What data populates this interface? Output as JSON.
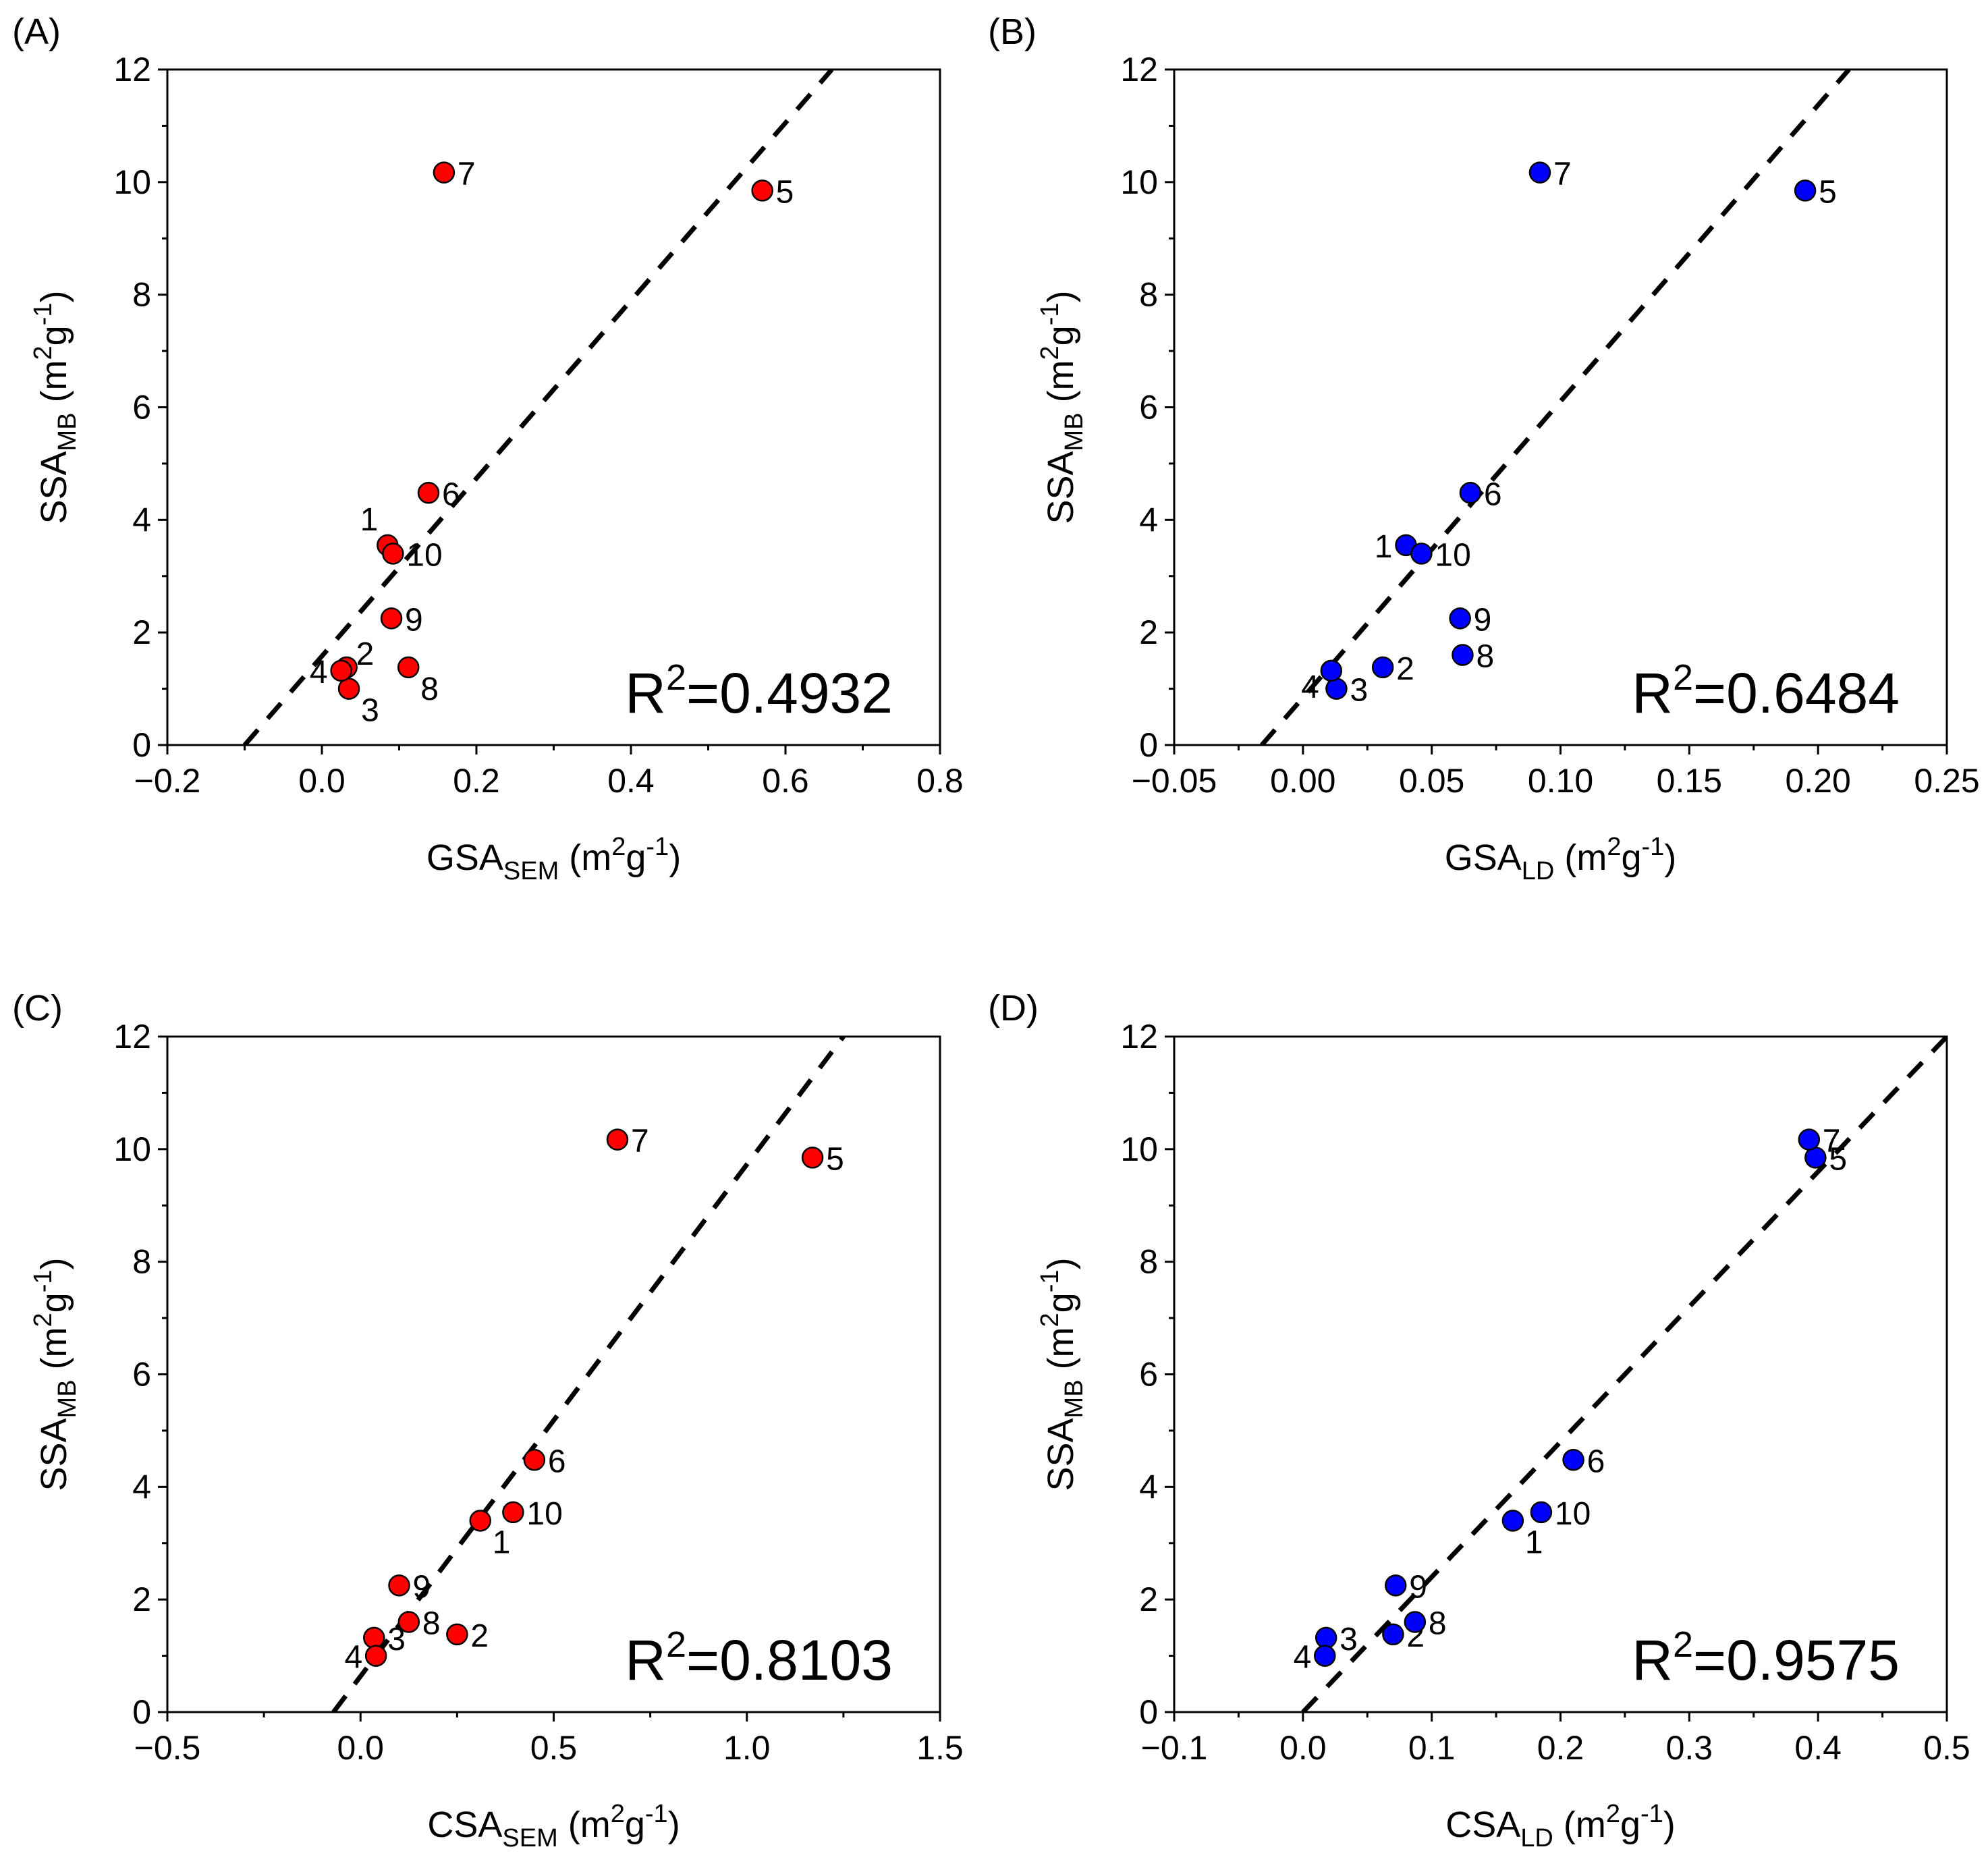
{
  "chart_data": [
    {
      "type": "scatter",
      "panel_label": "(A)",
      "xlabel": {
        "main": "GSA",
        "sub": "SEM",
        "units": " (m",
        "sup1": "2",
        "g": "g",
        "sup2": "-1",
        "close": ")"
      },
      "ylabel": {
        "main": "SSA",
        "sub": "MB",
        "units": " (m",
        "sup1": "2",
        "g": "g",
        "sup2": "-1",
        "close": ")"
      },
      "xlim": [
        -0.2,
        0.8
      ],
      "ylim": [
        0,
        12
      ],
      "xticks": [
        -0.2,
        0.0,
        0.2,
        0.4,
        0.6,
        0.8
      ],
      "xtick_labels": [
        "−0.2",
        "0.0",
        "0.2",
        "0.4",
        "0.6",
        "0.8"
      ],
      "yticks": [
        0,
        2,
        4,
        6,
        8,
        10,
        12
      ],
      "ytick_labels": [
        "0",
        "2",
        "4",
        "6",
        "8",
        "10",
        "12"
      ],
      "marker_color": "#ff0000",
      "points": [
        {
          "label": "1",
          "x": 0.085,
          "y": 3.55,
          "lpos": "nw"
        },
        {
          "label": "2",
          "x": 0.032,
          "y": 1.38,
          "lpos": "ne"
        },
        {
          "label": "3",
          "x": 0.035,
          "y": 1.0,
          "lpos": "se"
        },
        {
          "label": "4",
          "x": 0.025,
          "y": 1.32,
          "lpos": "w"
        },
        {
          "label": "5",
          "x": 0.57,
          "y": 9.85,
          "lpos": "e"
        },
        {
          "label": "6",
          "x": 0.138,
          "y": 4.48,
          "lpos": "e"
        },
        {
          "label": "7",
          "x": 0.158,
          "y": 10.17,
          "lpos": "e"
        },
        {
          "label": "8",
          "x": 0.112,
          "y": 1.38,
          "lpos": "se"
        },
        {
          "label": "9",
          "x": 0.09,
          "y": 2.25,
          "lpos": "e"
        },
        {
          "label": "10",
          "x": 0.092,
          "y": 3.4,
          "lpos": "e"
        }
      ],
      "fit_line": {
        "x": [
          -0.1,
          0.66
        ],
        "y": [
          0,
          12
        ]
      },
      "annotation": {
        "text": "R",
        "sup": "2",
        "rest": "=0.4932"
      }
    },
    {
      "type": "scatter",
      "panel_label": "(B)",
      "xlabel": {
        "main": "GSA",
        "sub": "LD",
        "units": " (m",
        "sup1": "2",
        "g": "g",
        "sup2": "-1",
        "close": ")"
      },
      "ylabel": {
        "main": "SSA",
        "sub": "MB",
        "units": " (m",
        "sup1": "2",
        "g": "g",
        "sup2": "-1",
        "close": ")"
      },
      "xlim": [
        -0.05,
        0.25
      ],
      "ylim": [
        0,
        12
      ],
      "xticks": [
        -0.05,
        0.0,
        0.05,
        0.1,
        0.15,
        0.2,
        0.25
      ],
      "xtick_labels": [
        "−0.05",
        "0.00",
        "0.05",
        "0.10",
        "0.15",
        "0.20",
        "0.25"
      ],
      "yticks": [
        0,
        2,
        4,
        6,
        8,
        10,
        12
      ],
      "ytick_labels": [
        "0",
        "2",
        "4",
        "6",
        "8",
        "10",
        "12"
      ],
      "marker_color": "#0000ff",
      "points": [
        {
          "label": "1",
          "x": 0.04,
          "y": 3.55,
          "lpos": "w"
        },
        {
          "label": "2",
          "x": 0.031,
          "y": 1.38,
          "lpos": "e"
        },
        {
          "label": "3",
          "x": 0.013,
          "y": 1.0,
          "lpos": "e"
        },
        {
          "label": "4",
          "x": 0.011,
          "y": 1.32,
          "lpos": "sw"
        },
        {
          "label": "5",
          "x": 0.195,
          "y": 9.85,
          "lpos": "e"
        },
        {
          "label": "6",
          "x": 0.065,
          "y": 4.48,
          "lpos": "e"
        },
        {
          "label": "7",
          "x": 0.092,
          "y": 10.17,
          "lpos": "e"
        },
        {
          "label": "8",
          "x": 0.062,
          "y": 1.6,
          "lpos": "e"
        },
        {
          "label": "9",
          "x": 0.061,
          "y": 2.25,
          "lpos": "e"
        },
        {
          "label": "10",
          "x": 0.046,
          "y": 3.4,
          "lpos": "e"
        }
      ],
      "fit_line": {
        "x": [
          -0.016,
          0.212
        ],
        "y": [
          0,
          12
        ]
      },
      "annotation": {
        "text": "R",
        "sup": "2",
        "rest": "=0.6484"
      }
    },
    {
      "type": "scatter",
      "panel_label": "(C)",
      "xlabel": {
        "main": "CSA",
        "sub": "SEM",
        "units": " (m",
        "sup1": "2",
        "g": "g",
        "sup2": "-1",
        "close": ")"
      },
      "ylabel": {
        "main": "SSA",
        "sub": "MB",
        "units": " (m",
        "sup1": "2",
        "g": "g",
        "sup2": "-1",
        "close": ")"
      },
      "xlim": [
        -0.5,
        1.5
      ],
      "ylim": [
        0,
        12
      ],
      "xticks": [
        -0.5,
        0.0,
        0.5,
        1.0,
        1.5
      ],
      "xtick_labels": [
        "−0.5",
        "0.0",
        "0.5",
        "1.0",
        "1.5"
      ],
      "yticks": [
        0,
        2,
        4,
        6,
        8,
        10,
        12
      ],
      "ytick_labels": [
        "0",
        "2",
        "4",
        "6",
        "8",
        "10",
        "12"
      ],
      "marker_color": "#ff0000",
      "points": [
        {
          "label": "1",
          "x": 0.31,
          "y": 3.4,
          "lpos": "se"
        },
        {
          "label": "2",
          "x": 0.25,
          "y": 1.38,
          "lpos": "e"
        },
        {
          "label": "3",
          "x": 0.035,
          "y": 1.32,
          "lpos": "e"
        },
        {
          "label": "4",
          "x": 0.04,
          "y": 1.0,
          "lpos": "w"
        },
        {
          "label": "5",
          "x": 1.17,
          "y": 9.85,
          "lpos": "e"
        },
        {
          "label": "6",
          "x": 0.45,
          "y": 4.48,
          "lpos": "e"
        },
        {
          "label": "7",
          "x": 0.665,
          "y": 10.17,
          "lpos": "e"
        },
        {
          "label": "8",
          "x": 0.125,
          "y": 1.6,
          "lpos": "e"
        },
        {
          "label": "9",
          "x": 0.1,
          "y": 2.25,
          "lpos": "e"
        },
        {
          "label": "10",
          "x": 0.395,
          "y": 3.55,
          "lpos": "e"
        }
      ],
      "fit_line": {
        "x": [
          -0.07,
          1.25
        ],
        "y": [
          0,
          12
        ]
      },
      "annotation": {
        "text": "R",
        "sup": "2",
        "rest": "=0.8103"
      }
    },
    {
      "type": "scatter",
      "panel_label": "(D)",
      "xlabel": {
        "main": "CSA",
        "sub": "LD",
        "units": " (m",
        "sup1": "2",
        "g": "g",
        "sup2": "-1",
        "close": ")"
      },
      "ylabel": {
        "main": "SSA",
        "sub": "MB",
        "units": " (m",
        "sup1": "2",
        "g": "g",
        "sup2": "-1",
        "close": ")"
      },
      "xlim": [
        -0.1,
        0.5
      ],
      "ylim": [
        0,
        12
      ],
      "xticks": [
        -0.1,
        0.0,
        0.1,
        0.2,
        0.3,
        0.4,
        0.5
      ],
      "xtick_labels": [
        "−0.1",
        "0.0",
        "0.1",
        "0.2",
        "0.3",
        "0.4",
        "0.5"
      ],
      "yticks": [
        0,
        2,
        4,
        6,
        8,
        10,
        12
      ],
      "ytick_labels": [
        "0",
        "2",
        "4",
        "6",
        "8",
        "10",
        "12"
      ],
      "marker_color": "#0000ff",
      "points": [
        {
          "label": "1",
          "x": 0.163,
          "y": 3.4,
          "lpos": "se"
        },
        {
          "label": "2",
          "x": 0.07,
          "y": 1.38,
          "lpos": "e"
        },
        {
          "label": "3",
          "x": 0.018,
          "y": 1.32,
          "lpos": "e"
        },
        {
          "label": "4",
          "x": 0.017,
          "y": 1.0,
          "lpos": "w"
        },
        {
          "label": "5",
          "x": 0.398,
          "y": 9.85,
          "lpos": "e"
        },
        {
          "label": "6",
          "x": 0.21,
          "y": 4.48,
          "lpos": "e"
        },
        {
          "label": "7",
          "x": 0.393,
          "y": 10.17,
          "lpos": "e"
        },
        {
          "label": "8",
          "x": 0.087,
          "y": 1.6,
          "lpos": "e"
        },
        {
          "label": "9",
          "x": 0.072,
          "y": 2.25,
          "lpos": "e"
        },
        {
          "label": "10",
          "x": 0.185,
          "y": 3.55,
          "lpos": "e"
        }
      ],
      "fit_line": {
        "x": [
          0.0,
          0.5
        ],
        "y": [
          0,
          12
        ]
      },
      "annotation": {
        "text": "R",
        "sup": "2",
        "rest": "=0.9575"
      }
    }
  ]
}
